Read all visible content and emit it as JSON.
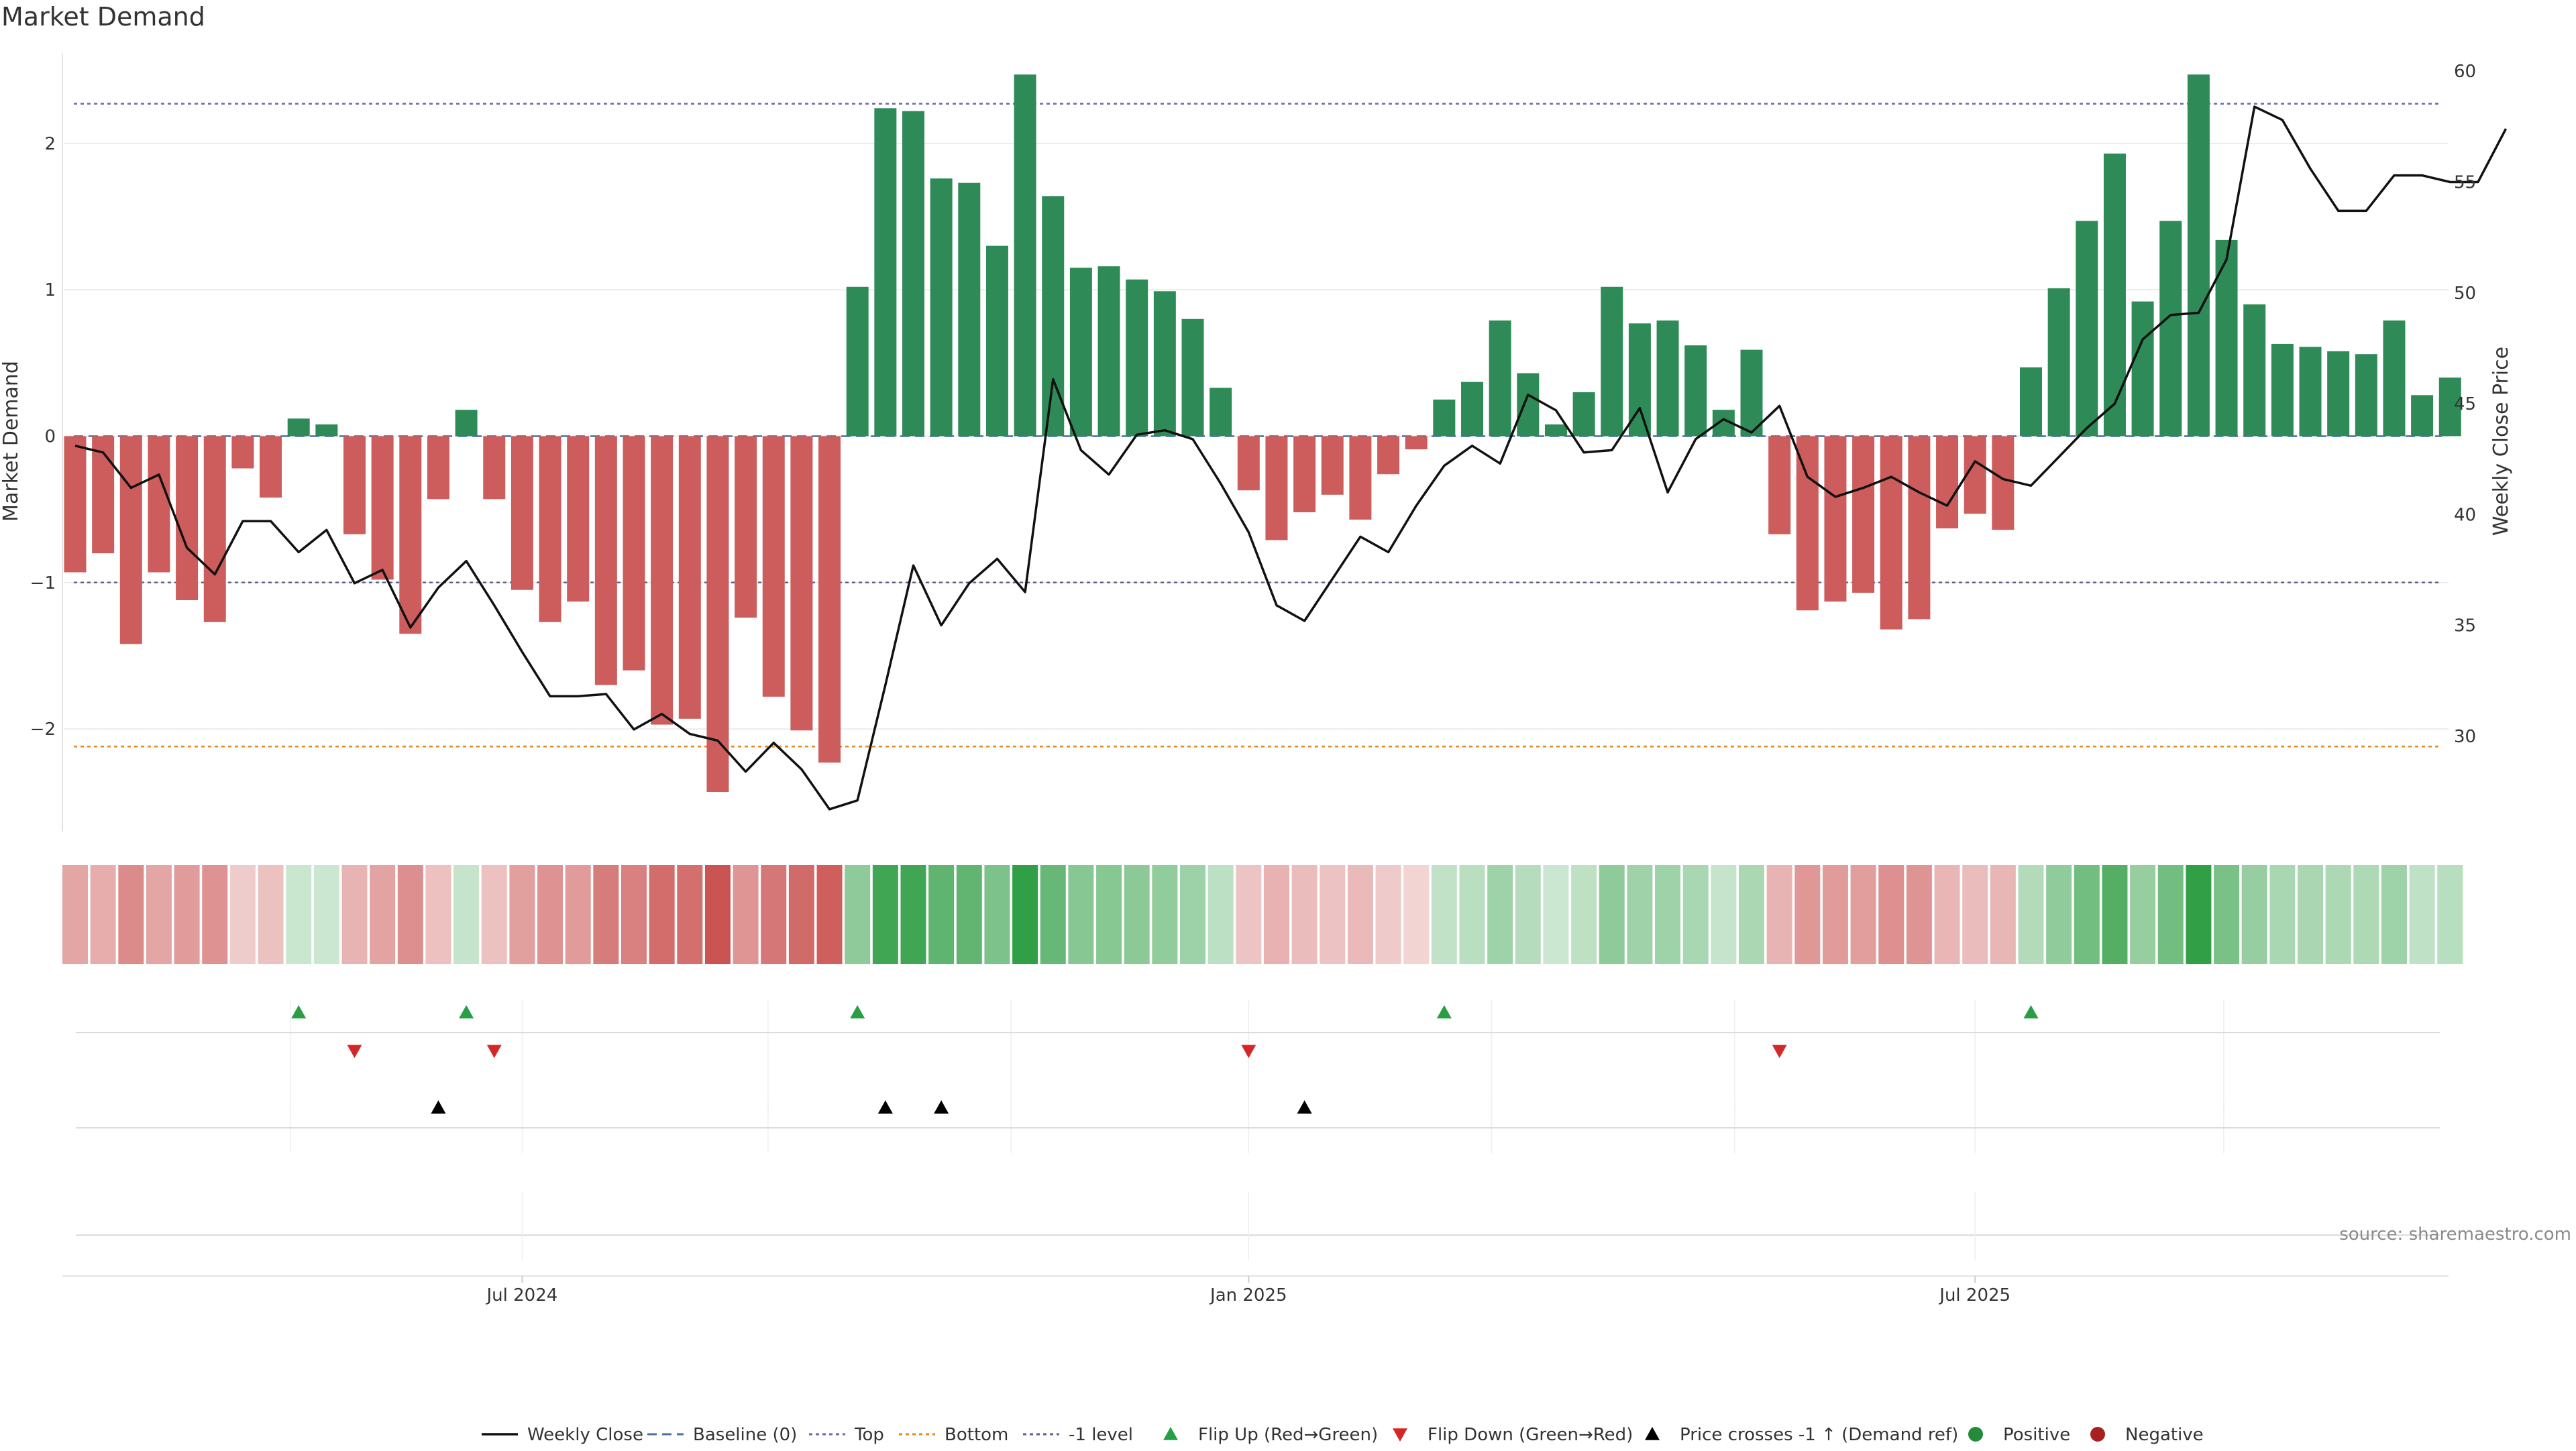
{
  "chart_data": {
    "type": "bar",
    "title": "Market Demand",
    "ylabel": "Market Demand",
    "y2label": "Weekly Close Price",
    "ylim": [
      -2.7,
      2.75
    ],
    "y2lim": [
      25.7,
      61.7
    ],
    "yticks": [
      -2,
      -1,
      0,
      1,
      2
    ],
    "yticklabels": [
      "−2",
      "−1",
      "0",
      "1",
      "2"
    ],
    "y2ticks": [
      30,
      35,
      40,
      45,
      50,
      55,
      60
    ],
    "y2ticklabels": [
      "30",
      "35",
      "40",
      "45",
      "50",
      "55",
      "60"
    ],
    "reference_lines": {
      "top": 2.27,
      "bottom": -2.12,
      "minus_one": -1,
      "baseline": 0
    },
    "x_ticks": [
      {
        "label": "Jul 2024",
        "week_index": 16
      },
      {
        "label": "Jan 2025",
        "week_index": 42
      },
      {
        "label": "Jul 2025",
        "week_index": 68
      }
    ],
    "series": [
      {
        "name": "Market Demand",
        "type": "bar",
        "values": [
          -0.93,
          -0.8,
          -1.42,
          -0.93,
          -1.12,
          -1.27,
          -0.22,
          -0.42,
          0.12,
          0.08,
          -0.67,
          -0.98,
          -1.35,
          -0.43,
          0.18,
          -0.43,
          -1.05,
          -1.27,
          -1.13,
          -1.7,
          -1.6,
          -1.97,
          -1.93,
          -2.43,
          -1.24,
          -1.78,
          -2.01,
          -2.23,
          1.02,
          2.24,
          2.22,
          1.76,
          1.73,
          1.3,
          2.47,
          1.64,
          1.15,
          1.16,
          1.07,
          0.99,
          0.8,
          0.33,
          -0.37,
          -0.71,
          -0.52,
          -0.4,
          -0.57,
          -0.26,
          -0.09,
          0.25,
          0.37,
          0.79,
          0.43,
          0.08,
          0.3,
          1.02,
          0.77,
          0.79,
          0.62,
          0.18,
          0.59,
          -0.67,
          -1.19,
          -1.13,
          -1.07,
          -1.32,
          -1.25,
          -0.63,
          -0.53,
          -0.64,
          0.47,
          1.01,
          1.47,
          1.93,
          0.92,
          1.47,
          2.47,
          1.34,
          0.9,
          0.63,
          0.61,
          0.58,
          0.56,
          0.79,
          0.28,
          0.4
        ]
      },
      {
        "name": "Weekly Close",
        "type": "line",
        "values": [
          43.1,
          42.8,
          41.2,
          41.8,
          38.5,
          37.3,
          39.7,
          39.7,
          38.3,
          39.3,
          36.9,
          37.5,
          34.9,
          36.7,
          37.9,
          35.9,
          33.8,
          31.8,
          31.8,
          31.9,
          30.3,
          31,
          30.1,
          29.8,
          28.4,
          29.7,
          28.5,
          26.7,
          27.1,
          32.3,
          37.7,
          35,
          36.9,
          38,
          36.5,
          46.1,
          42.9,
          41.8,
          43.6,
          43.8,
          43.4,
          41.4,
          39.2,
          35.9,
          35.2,
          37.1,
          39,
          38.3,
          40.4,
          42.2,
          43.1,
          42.3,
          45.4,
          44.7,
          42.8,
          42.9,
          44.8,
          41,
          43.4,
          44.3,
          43.7,
          44.9,
          41.7,
          40.8,
          41.2,
          41.7,
          41,
          40.4,
          42.4,
          41.6,
          41.3,
          42.6,
          43.9,
          45,
          47.9,
          49,
          49.1,
          51.5,
          58.4,
          57.8,
          55.6,
          53.7,
          53.7,
          55.3,
          55.3,
          55,
          55,
          57.4
        ]
      }
    ],
    "flip_up_weeks": [
      8,
      14,
      28,
      49,
      70
    ],
    "flip_down_weeks": [
      10,
      15,
      42,
      61
    ],
    "price_cross_weeks": [
      13,
      29,
      31,
      44
    ],
    "legend": [
      {
        "label": "Weekly Close",
        "kind": "line",
        "color": "#111111"
      },
      {
        "label": "Baseline (0)",
        "kind": "dash",
        "color": "#4a6fa5"
      },
      {
        "label": "Top",
        "kind": "dot",
        "color": "#6a6aa8"
      },
      {
        "label": "Bottom",
        "kind": "dot",
        "color": "#e08a1e"
      },
      {
        "label": "-1 level",
        "kind": "dot",
        "color": "#5e5e90"
      },
      {
        "label": "Flip Up (Red→Green)",
        "kind": "tri-up",
        "color": "#27a045"
      },
      {
        "label": "Flip Down (Green→Red)",
        "kind": "tri-down",
        "color": "#d62728"
      },
      {
        "label": "Price crosses -1 ↑ (Demand ref)",
        "kind": "tri-up",
        "color": "#000000"
      },
      {
        "label": "Positive",
        "kind": "circle",
        "color": "#238b3a"
      },
      {
        "label": "Negative",
        "kind": "circle",
        "color": "#a8201f"
      }
    ],
    "colors": {
      "positive": "#2e8b57",
      "negative": "#cd5c5c",
      "line": "#111111",
      "grid": "#e6e6e6"
    }
  },
  "source": "source: sharemaestro.com"
}
